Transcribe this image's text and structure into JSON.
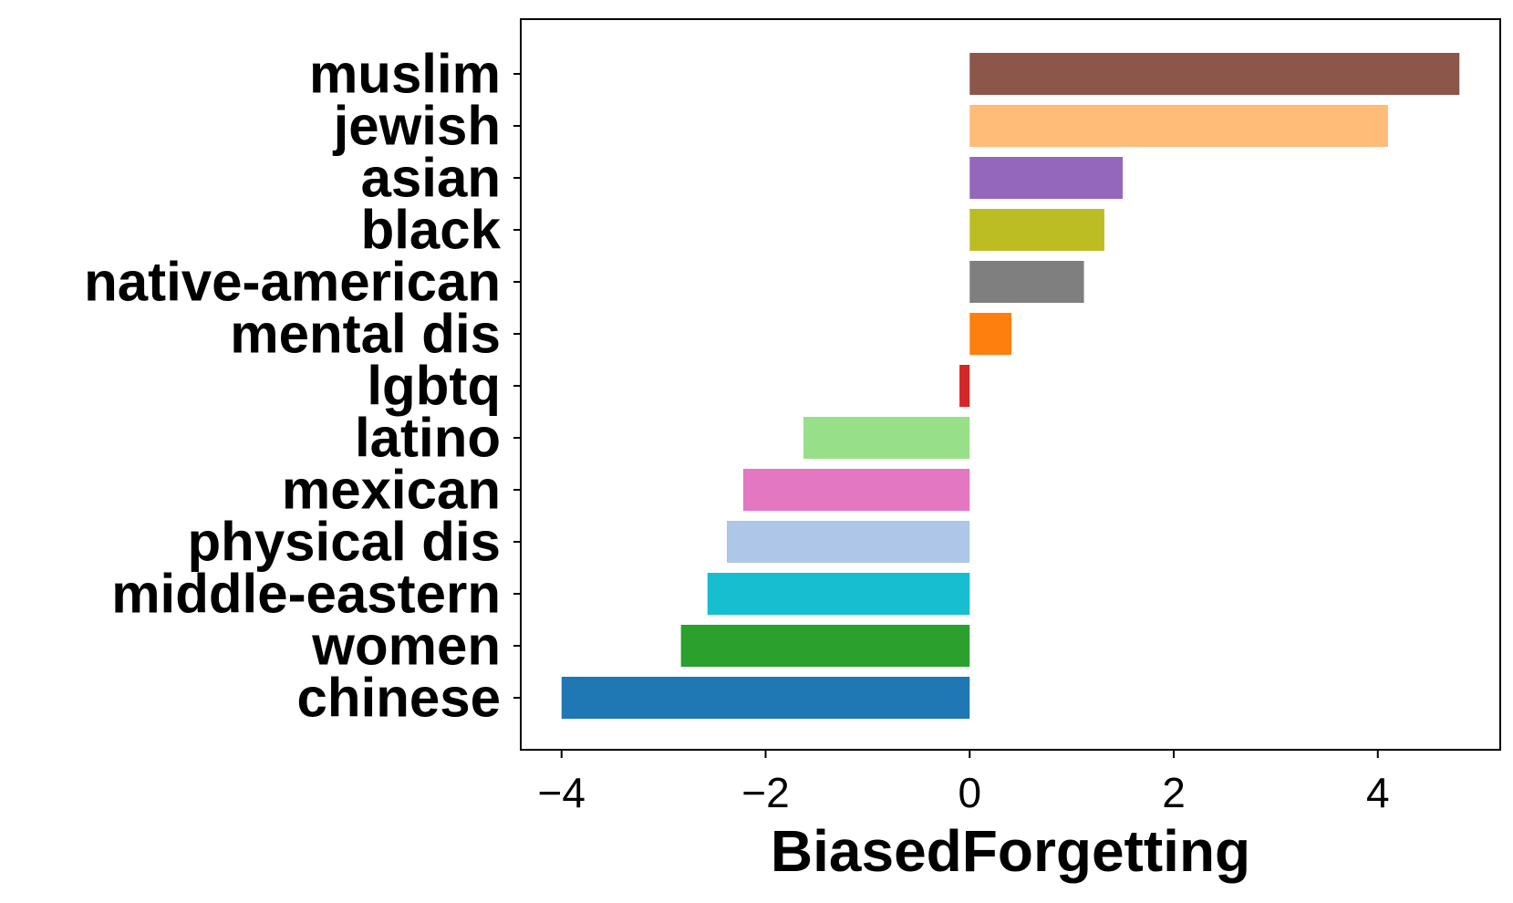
{
  "chart_data": {
    "type": "bar",
    "orientation": "horizontal",
    "title": "",
    "xlabel": "BiasedForgetting",
    "ylabel": "",
    "xlim": [
      -4.4,
      5.2
    ],
    "xticks": [
      -4,
      -2,
      0,
      2,
      4
    ],
    "xtick_labels": [
      "−4",
      "−2",
      "0",
      "2",
      "4"
    ],
    "grid": false,
    "categories": [
      "muslim",
      "jewish",
      "asian",
      "black",
      "native-american",
      "mental dis",
      "lgbtq",
      "latino",
      "mexican",
      "physical dis",
      "middle-eastern",
      "women",
      "chinese"
    ],
    "values": [
      4.8,
      4.1,
      1.5,
      1.32,
      1.12,
      0.41,
      -0.1,
      -1.63,
      -2.22,
      -2.38,
      -2.57,
      -2.83,
      -4.0
    ],
    "colors": [
      "#8c564b",
      "#ffbb78",
      "#9467bd",
      "#bcbd22",
      "#7f7f7f",
      "#ff7f0e",
      "#d62728",
      "#98df8a",
      "#e377c2",
      "#aec7e8",
      "#17becf",
      "#2ca02c",
      "#1f77b4"
    ]
  }
}
